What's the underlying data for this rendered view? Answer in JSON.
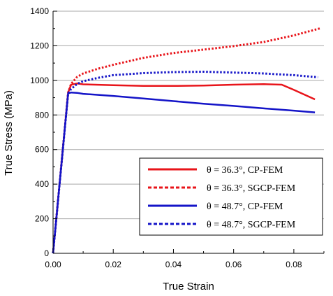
{
  "chart_data": {
    "type": "line",
    "xlabel": "True Strain",
    "ylabel": "True Stress (MPa)",
    "xlim": [
      0,
      0.09
    ],
    "ylim": [
      0,
      1400
    ],
    "x_ticks": [
      "0.00",
      "0.02",
      "0.04",
      "0.06",
      "0.08"
    ],
    "x_tick_values": [
      0,
      0.02,
      0.04,
      0.06,
      0.08
    ],
    "y_ticks": [
      "0",
      "200",
      "400",
      "600",
      "800",
      "1000",
      "1200",
      "1400"
    ],
    "y_tick_values": [
      0,
      200,
      400,
      600,
      800,
      1000,
      1200,
      1400
    ],
    "grid": "horizontal",
    "legend_position": "bottom-right",
    "series": [
      {
        "name": "θ = 36.3°, CP-FEM",
        "color": "#e8141a",
        "style": "solid",
        "x": [
          0,
          0.005,
          0.006,
          0.008,
          0.01,
          0.02,
          0.03,
          0.04,
          0.05,
          0.06,
          0.07,
          0.076,
          0.08,
          0.087
        ],
        "y": [
          0,
          930,
          975,
          982,
          977,
          972,
          968,
          968,
          970,
          975,
          978,
          975,
          945,
          890
        ]
      },
      {
        "name": "θ = 36.3°, SGCP-FEM",
        "color": "#e8141a",
        "style": "dotted",
        "x": [
          0,
          0.005,
          0.006,
          0.008,
          0.01,
          0.015,
          0.02,
          0.03,
          0.04,
          0.05,
          0.06,
          0.07,
          0.08,
          0.089
        ],
        "y": [
          0,
          930,
          980,
          1020,
          1040,
          1068,
          1090,
          1130,
          1158,
          1178,
          1198,
          1222,
          1260,
          1302
        ]
      },
      {
        "name": "θ = 48.7°, CP-FEM",
        "color": "#1414c8",
        "style": "solid",
        "x": [
          0,
          0.005,
          0.006,
          0.008,
          0.01,
          0.02,
          0.03,
          0.04,
          0.05,
          0.06,
          0.07,
          0.08,
          0.087
        ],
        "y": [
          0,
          925,
          930,
          928,
          922,
          910,
          895,
          880,
          865,
          852,
          838,
          825,
          815
        ]
      },
      {
        "name": "θ = 48.7°, SGCP-FEM",
        "color": "#1414c8",
        "style": "dotted",
        "x": [
          0,
          0.005,
          0.006,
          0.008,
          0.01,
          0.015,
          0.02,
          0.03,
          0.04,
          0.05,
          0.06,
          0.07,
          0.08,
          0.088
        ],
        "y": [
          0,
          925,
          950,
          980,
          995,
          1015,
          1030,
          1042,
          1048,
          1050,
          1045,
          1040,
          1030,
          1018
        ]
      }
    ]
  }
}
